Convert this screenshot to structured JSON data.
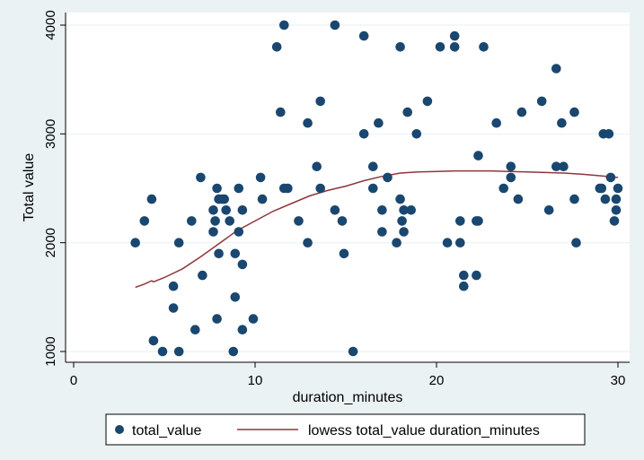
{
  "chart_data": {
    "type": "scatter",
    "xlabel": "duration_minutes",
    "ylabel": "Total value",
    "xlim": [
      0,
      30
    ],
    "ylim": [
      1000,
      4000
    ],
    "x_ticks": [
      0,
      10,
      20,
      30
    ],
    "y_ticks": [
      1000,
      2000,
      3000,
      4000
    ],
    "grid": true,
    "legend_position": "bottom",
    "colors": {
      "background": "#eaf2f3",
      "plot_area": "#ffffff",
      "grid": "#eaf2f3",
      "points": "#1a476f",
      "fit_line": "#90353b"
    },
    "series": [
      {
        "name": "total_value",
        "kind": "scatter",
        "points": [
          [
            3.4,
            2000
          ],
          [
            3.9,
            2200
          ],
          [
            4.3,
            2400
          ],
          [
            4.4,
            1100
          ],
          [
            4.9,
            1000
          ],
          [
            5.5,
            1600
          ],
          [
            5.5,
            1400
          ],
          [
            5.8,
            2000
          ],
          [
            5.8,
            1000
          ],
          [
            6.5,
            2200
          ],
          [
            6.7,
            1200
          ],
          [
            7.0,
            2600
          ],
          [
            7.1,
            1700
          ],
          [
            7.7,
            2100
          ],
          [
            7.7,
            2300
          ],
          [
            7.8,
            2200
          ],
          [
            7.9,
            2500
          ],
          [
            7.9,
            1300
          ],
          [
            8.0,
            2400
          ],
          [
            8.0,
            1900
          ],
          [
            8.2,
            2400
          ],
          [
            8.3,
            2400
          ],
          [
            8.4,
            2300
          ],
          [
            8.6,
            2200
          ],
          [
            8.8,
            1000
          ],
          [
            8.9,
            1500
          ],
          [
            8.9,
            1900
          ],
          [
            9.1,
            2100
          ],
          [
            9.1,
            2500
          ],
          [
            9.3,
            2300
          ],
          [
            9.3,
            1200
          ],
          [
            9.3,
            1800
          ],
          [
            9.9,
            1300
          ],
          [
            10.3,
            2600
          ],
          [
            10.4,
            2400
          ],
          [
            11.2,
            3800
          ],
          [
            11.4,
            3200
          ],
          [
            11.6,
            4000
          ],
          [
            11.6,
            2500
          ],
          [
            11.8,
            2500
          ],
          [
            12.4,
            2200
          ],
          [
            12.9,
            3100
          ],
          [
            12.9,
            2000
          ],
          [
            13.4,
            2700
          ],
          [
            13.6,
            3300
          ],
          [
            13.6,
            2500
          ],
          [
            14.4,
            4000
          ],
          [
            14.4,
            2300
          ],
          [
            14.8,
            2200
          ],
          [
            14.9,
            1900
          ],
          [
            15.4,
            1000
          ],
          [
            16.0,
            3900
          ],
          [
            16.0,
            3000
          ],
          [
            16.5,
            2700
          ],
          [
            16.5,
            2500
          ],
          [
            16.8,
            3100
          ],
          [
            17.0,
            2300
          ],
          [
            17.0,
            2100
          ],
          [
            17.3,
            2600
          ],
          [
            17.8,
            2000
          ],
          [
            18.0,
            3800
          ],
          [
            18.0,
            2400
          ],
          [
            18.1,
            2200
          ],
          [
            18.2,
            2100
          ],
          [
            18.2,
            2300
          ],
          [
            18.4,
            3200
          ],
          [
            18.6,
            2300
          ],
          [
            18.9,
            3000
          ],
          [
            19.5,
            3300
          ],
          [
            20.2,
            3800
          ],
          [
            20.6,
            2000
          ],
          [
            21.0,
            3900
          ],
          [
            21.0,
            3800
          ],
          [
            21.3,
            2200
          ],
          [
            21.3,
            2000
          ],
          [
            21.5,
            1600
          ],
          [
            21.5,
            1700
          ],
          [
            22.2,
            2200
          ],
          [
            22.2,
            1700
          ],
          [
            22.3,
            2200
          ],
          [
            22.3,
            2800
          ],
          [
            22.6,
            3800
          ],
          [
            23.3,
            3100
          ],
          [
            23.7,
            2500
          ],
          [
            24.1,
            2600
          ],
          [
            24.1,
            2700
          ],
          [
            24.5,
            2400
          ],
          [
            24.7,
            3200
          ],
          [
            25.8,
            3300
          ],
          [
            26.2,
            2300
          ],
          [
            26.6,
            3600
          ],
          [
            26.6,
            2700
          ],
          [
            26.9,
            3100
          ],
          [
            27.0,
            2700
          ],
          [
            27.6,
            3200
          ],
          [
            27.6,
            2400
          ],
          [
            27.7,
            2000
          ],
          [
            29.0,
            2500
          ],
          [
            29.1,
            2500
          ],
          [
            29.2,
            3000
          ],
          [
            29.3,
            2400
          ],
          [
            29.5,
            3000
          ],
          [
            29.6,
            2600
          ],
          [
            29.8,
            2200
          ],
          [
            29.9,
            2300
          ],
          [
            29.9,
            2400
          ],
          [
            30.0,
            2500
          ]
        ]
      },
      {
        "name": "lowess total_value duration_minutes",
        "kind": "line",
        "points": [
          [
            3.4,
            1590
          ],
          [
            3.9,
            1620
          ],
          [
            4.3,
            1650
          ],
          [
            4.4,
            1640
          ],
          [
            5.0,
            1680
          ],
          [
            6.0,
            1760
          ],
          [
            7.0,
            1870
          ],
          [
            8.0,
            1990
          ],
          [
            9.0,
            2110
          ],
          [
            10.0,
            2200
          ],
          [
            11.0,
            2290
          ],
          [
            12.0,
            2360
          ],
          [
            13.0,
            2430
          ],
          [
            14.0,
            2480
          ],
          [
            15.0,
            2520
          ],
          [
            16.0,
            2570
          ],
          [
            17.0,
            2610
          ],
          [
            18.0,
            2640
          ],
          [
            19.0,
            2650
          ],
          [
            20.0,
            2655
          ],
          [
            21.0,
            2660
          ],
          [
            22.0,
            2660
          ],
          [
            23.0,
            2660
          ],
          [
            24.0,
            2655
          ],
          [
            25.0,
            2650
          ],
          [
            26.0,
            2645
          ],
          [
            27.0,
            2640
          ],
          [
            28.0,
            2630
          ],
          [
            29.0,
            2615
          ],
          [
            30.0,
            2600
          ]
        ]
      }
    ]
  }
}
